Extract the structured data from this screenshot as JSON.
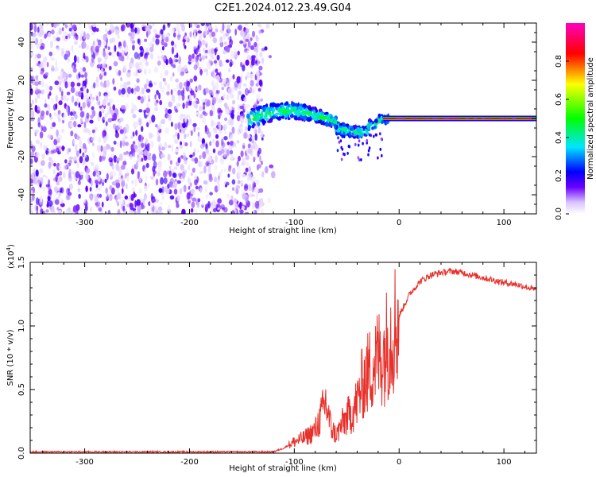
{
  "figure": {
    "title": "C2E1.2024.012.23.49.G04"
  },
  "chart_data": [
    {
      "type": "heatmap",
      "title": "C2E1.2024.012.23.49.G04",
      "xlabel": "Height of straight line (km)",
      "ylabel": "Frequency (Hz)",
      "xlim": [
        -352,
        131
      ],
      "ylim": [
        -50,
        50
      ],
      "xticks": [
        -300,
        -200,
        -100,
        0,
        100
      ],
      "yticks": [
        -40,
        -20,
        0,
        20,
        40
      ],
      "noise_region_x": [
        -352,
        -120
      ],
      "transition_region_x": [
        -145,
        -10
      ],
      "stable_line": {
        "x": [
          -15,
          131
        ],
        "frequency": 0,
        "amplitude": 0.85
      },
      "colorbar": {
        "label": "Normalized spectral amplitude",
        "range": [
          0.0,
          1.0
        ],
        "ticks": [
          0.0,
          0.2,
          0.4,
          0.6,
          0.8
        ],
        "tick_labels": [
          "0.0",
          "0.2",
          "0.4",
          "0.6",
          "0.8"
        ],
        "colors": [
          "#ffffff",
          "#d9c4ff",
          "#6a00ff",
          "#0000ff",
          "#00e5ff",
          "#00ff00",
          "#ffff00",
          "#ff0000",
          "#ff00bf"
        ]
      }
    },
    {
      "type": "line",
      "xlabel": "Height of straight line (km)",
      "ylabel": "SNR (10 * v/v)",
      "yscale_label": "(x10",
      "yscale_exp": "4",
      "yscale_close": ")",
      "xlim": [
        -352,
        131
      ],
      "ylim": [
        0.0,
        1.5
      ],
      "xticks": [
        -300,
        -200,
        -100,
        0,
        100
      ],
      "yticks": [
        0.0,
        0.5,
        1.0,
        1.5
      ],
      "ytick_labels": [
        "0.0",
        "0.5",
        "1.0",
        "1.5"
      ],
      "color": "#e8302a",
      "series": [
        {
          "x": [
            -352,
            -300,
            -250,
            -200,
            -150,
            -120,
            -110,
            -100,
            -90,
            -80,
            -75,
            -70,
            -65,
            -60,
            -55,
            -50,
            -45,
            -40,
            -35,
            -30,
            -25,
            -20,
            -15,
            -10,
            -5,
            0,
            10,
            20,
            30,
            40,
            50,
            60,
            70,
            80,
            90,
            100,
            110,
            120,
            131
          ],
          "y": [
            0.01,
            0.01,
            0.01,
            0.01,
            0.01,
            0.01,
            0.04,
            0.09,
            0.12,
            0.18,
            0.28,
            0.4,
            0.2,
            0.14,
            0.22,
            0.28,
            0.32,
            0.4,
            0.55,
            0.62,
            0.7,
            0.75,
            0.78,
            0.9,
            0.98,
            1.08,
            1.25,
            1.35,
            1.4,
            1.42,
            1.43,
            1.42,
            1.4,
            1.38,
            1.36,
            1.34,
            1.33,
            1.31,
            1.28
          ]
        }
      ]
    }
  ]
}
